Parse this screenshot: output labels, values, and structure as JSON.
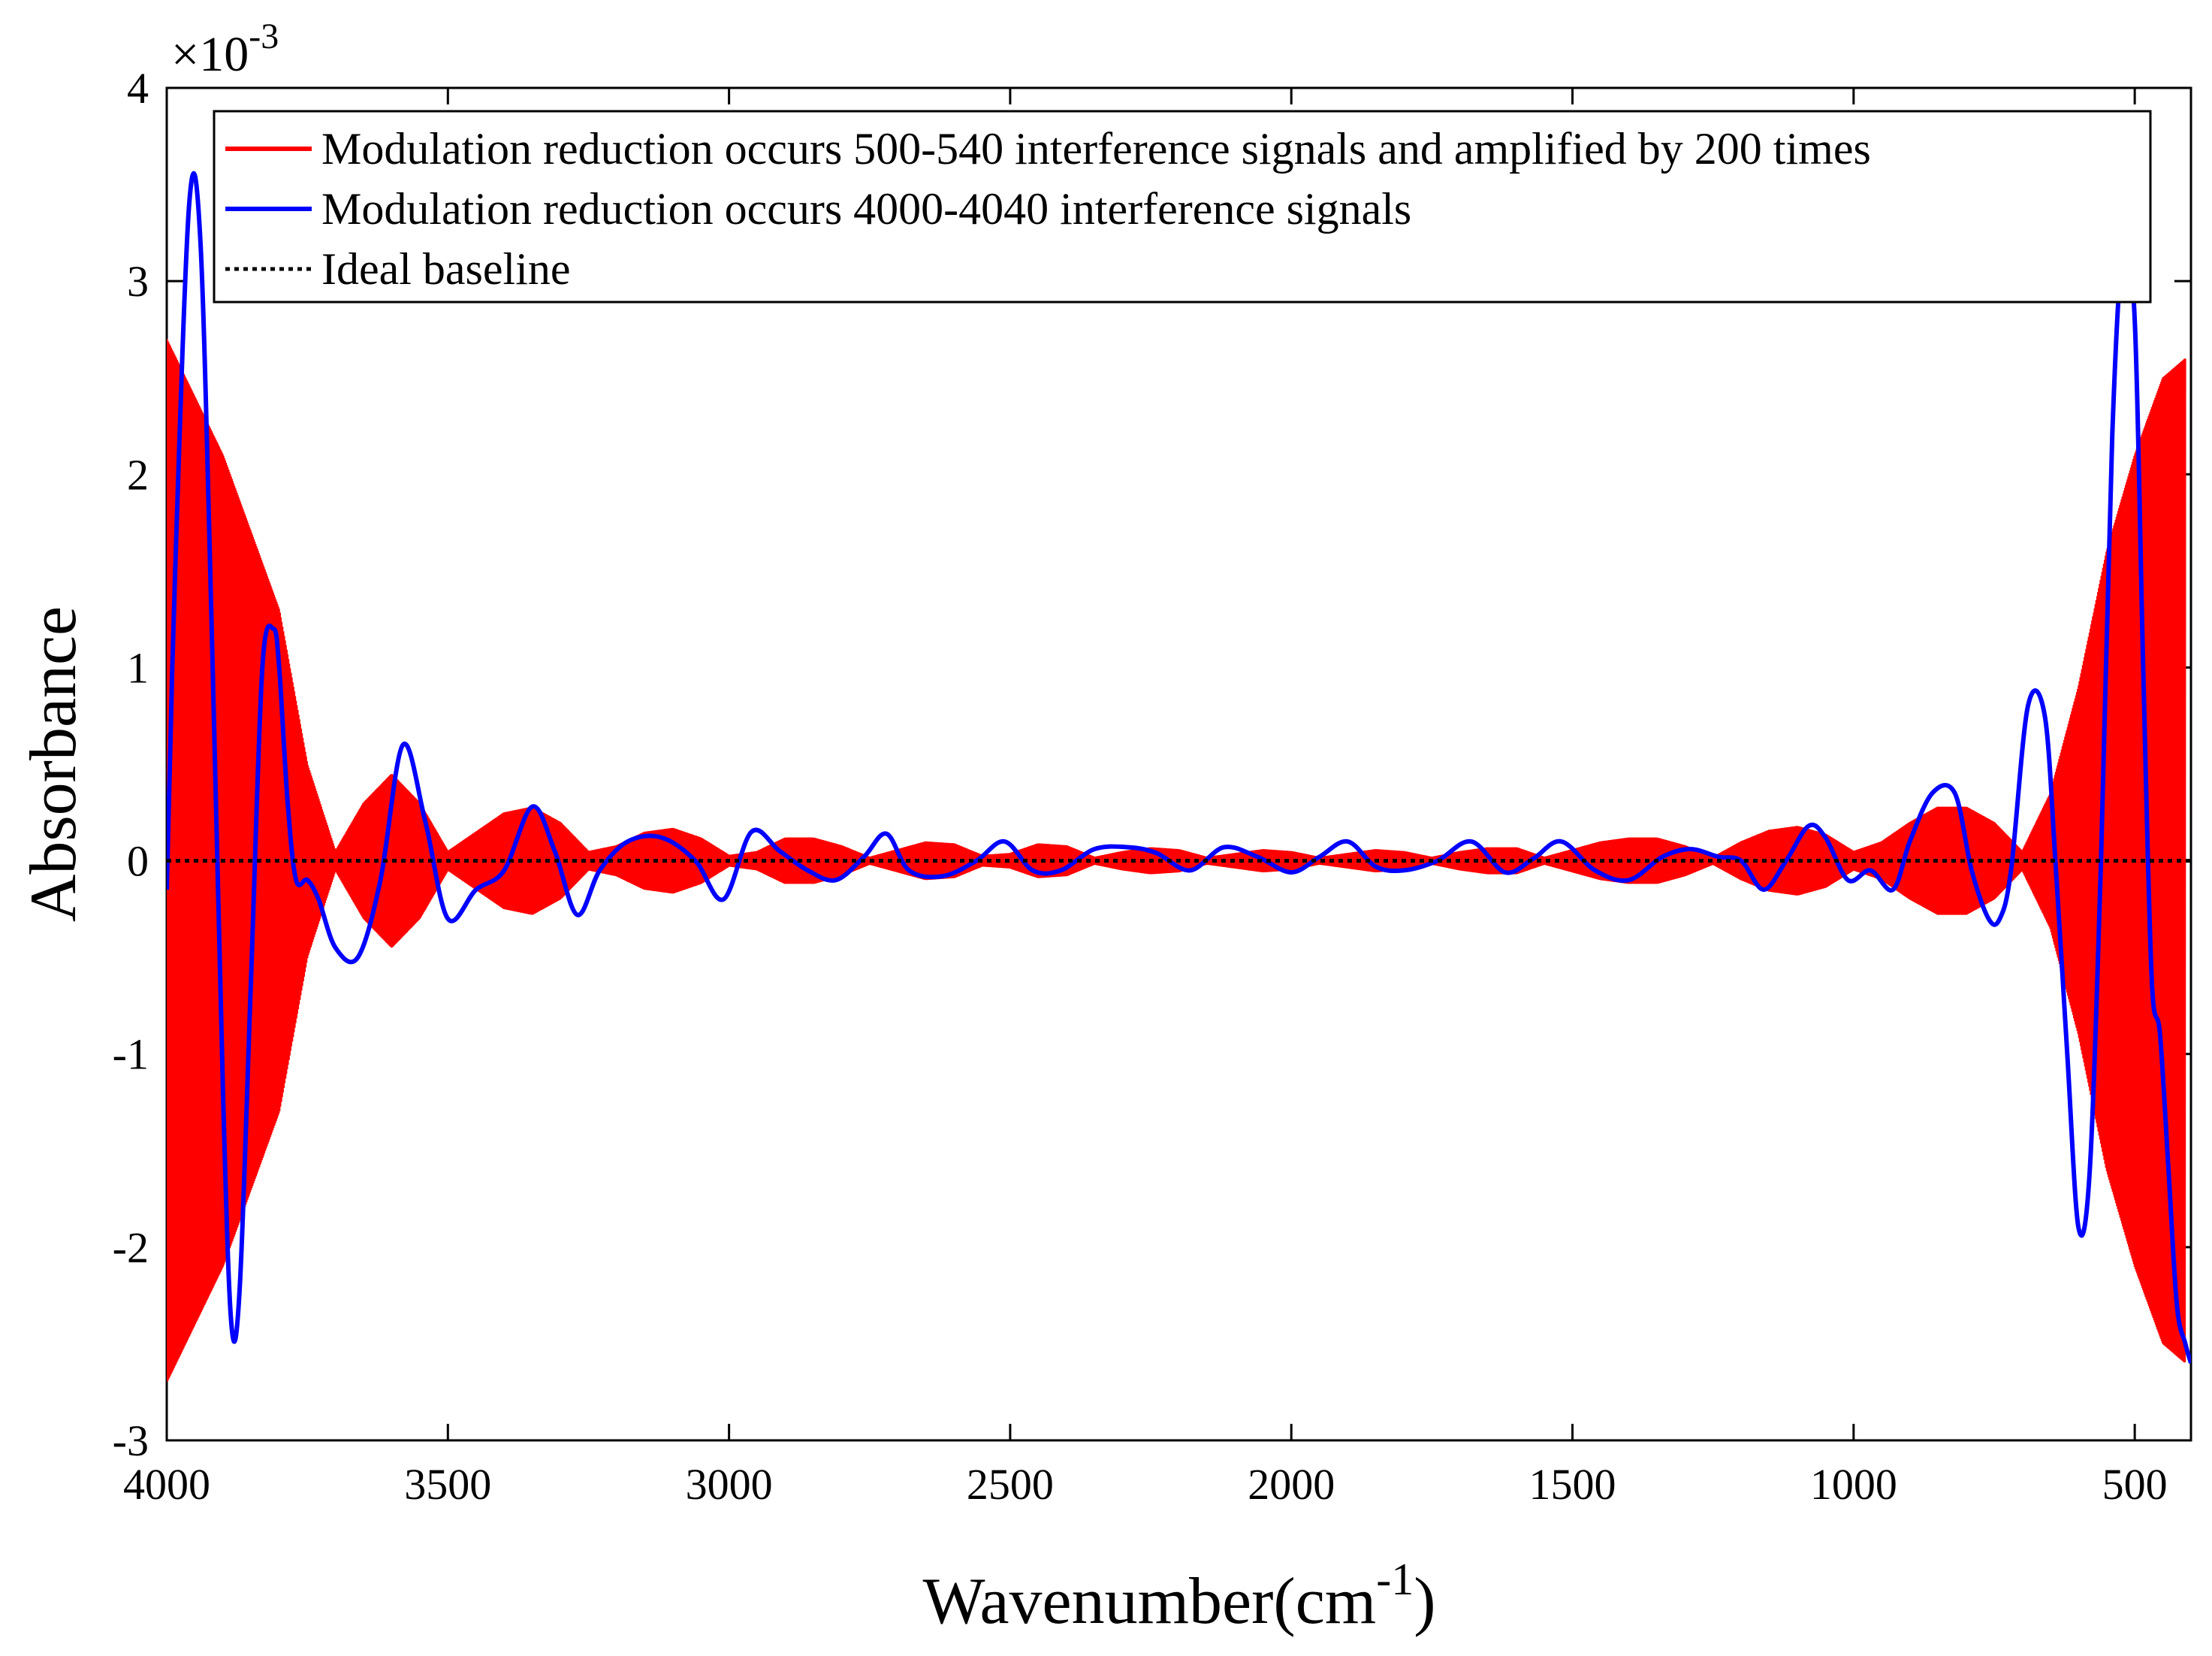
{
  "chart_data": {
    "type": "line",
    "xlabel": "Wavenumber(cm",
    "xlabel_unit_exp": "-1",
    "xlabel_close": ")",
    "ylabel": "Absorbance",
    "y_multiplier": "×10",
    "y_multiplier_exp": "-3",
    "xlim": [
      4000,
      400
    ],
    "ylim": [
      -3,
      4
    ],
    "x_reversed": true,
    "x_ticks": [
      4000,
      3500,
      3000,
      2500,
      2000,
      1500,
      1000,
      500
    ],
    "x_tick_labels": [
      "4000",
      "3500",
      "3000",
      "2500",
      "2000",
      "1500",
      "1000",
      "500"
    ],
    "y_ticks": [
      -3,
      -2,
      -1,
      0,
      1,
      2,
      3,
      4
    ],
    "y_tick_labels": [
      "-3",
      "-2",
      "-1",
      "0",
      "1",
      "2",
      "3",
      "4"
    ],
    "grid": false,
    "legend_position": "top",
    "series": [
      {
        "name": "Modulation reduction occurs 500-540 interference signals and amplified by 200 times",
        "color": "#ff0000",
        "style": "solid",
        "kind": "dense-oscillation-envelope",
        "envelope": {
          "wavenumber": [
            4000,
            3900,
            3800,
            3750,
            3700,
            3650,
            3600,
            3550,
            3500,
            3450,
            3400,
            3350,
            3300,
            3250,
            3200,
            3150,
            3100,
            3050,
            3000,
            2950,
            2900,
            2850,
            2800,
            2750,
            2700,
            2650,
            2600,
            2550,
            2500,
            2450,
            2400,
            2350,
            2300,
            2250,
            2200,
            2150,
            2100,
            2050,
            2000,
            1950,
            1900,
            1850,
            1800,
            1750,
            1700,
            1650,
            1600,
            1550,
            1500,
            1450,
            1400,
            1350,
            1300,
            1250,
            1200,
            1150,
            1100,
            1050,
            1000,
            950,
            900,
            850,
            800,
            750,
            700,
            650,
            600,
            550,
            500,
            450,
            410
          ],
          "amplitude": [
            2.7,
            2.1,
            1.3,
            0.5,
            0.05,
            0.3,
            0.45,
            0.3,
            0.05,
            0.15,
            0.25,
            0.28,
            0.2,
            0.05,
            0.08,
            0.15,
            0.17,
            0.12,
            0.03,
            0.05,
            0.12,
            0.12,
            0.08,
            0.02,
            0.06,
            0.1,
            0.09,
            0.03,
            0.04,
            0.09,
            0.08,
            0.02,
            0.05,
            0.07,
            0.06,
            0.02,
            0.04,
            0.06,
            0.05,
            0.02,
            0.04,
            0.06,
            0.05,
            0.02,
            0.05,
            0.07,
            0.07,
            0.02,
            0.06,
            0.1,
            0.12,
            0.12,
            0.08,
            0.02,
            0.1,
            0.16,
            0.18,
            0.14,
            0.05,
            0.1,
            0.2,
            0.28,
            0.28,
            0.2,
            0.05,
            0.35,
            0.9,
            1.6,
            2.1,
            2.5,
            2.6
          ]
        }
      },
      {
        "name": "Modulation reduction occurs 4000-4040 interference signals",
        "color": "#0000ff",
        "style": "solid",
        "x": [
          4000,
          3985,
          3960,
          3940,
          3920,
          3900,
          3885,
          3870,
          3850,
          3830,
          3810,
          3800,
          3785,
          3770,
          3750,
          3730,
          3700,
          3660,
          3620,
          3580,
          3540,
          3500,
          3450,
          3400,
          3350,
          3310,
          3270,
          3230,
          3180,
          3120,
          3060,
          3010,
          2960,
          2910,
          2860,
          2810,
          2760,
          2720,
          2680,
          2620,
          2560,
          2510,
          2460,
          2410,
          2350,
          2290,
          2240,
          2180,
          2120,
          2060,
          2000,
          1950,
          1900,
          1850,
          1800,
          1740,
          1680,
          1620,
          1570,
          1520,
          1460,
          1400,
          1340,
          1290,
          1240,
          1200,
          1160,
          1120,
          1080,
          1050,
          1010,
          970,
          930,
          900,
          860,
          820,
          790,
          760,
          740,
          720,
          690,
          660,
          640,
          620,
          600,
          580,
          560,
          540,
          520,
          500,
          485,
          470,
          455,
          440,
          425,
          410,
          400
        ],
        "y": [
          -0.15,
          1.5,
          3.4,
          3.2,
          1.2,
          -1.2,
          -2.4,
          -2.2,
          -0.6,
          1.0,
          1.2,
          1.0,
          0.3,
          -0.1,
          -0.1,
          -0.2,
          -0.45,
          -0.5,
          -0.1,
          0.6,
          0.2,
          -0.3,
          -0.15,
          -0.05,
          0.28,
          0.05,
          -0.28,
          -0.05,
          0.1,
          0.12,
          0.0,
          -0.2,
          0.15,
          0.05,
          -0.05,
          -0.1,
          0.02,
          0.14,
          -0.05,
          -0.08,
          0.0,
          0.1,
          -0.05,
          -0.05,
          0.06,
          0.07,
          0.04,
          -0.05,
          0.07,
          0.02,
          -0.06,
          0.02,
          0.1,
          -0.03,
          -0.05,
          0.0,
          0.1,
          -0.06,
          0.01,
          0.1,
          -0.05,
          -0.1,
          0.02,
          0.06,
          0.02,
          0.0,
          -0.15,
          0.0,
          0.18,
          0.12,
          -0.1,
          -0.05,
          -0.15,
          0.1,
          0.35,
          0.35,
          -0.05,
          -0.3,
          -0.3,
          -0.05,
          0.8,
          0.75,
          -0.05,
          -1.0,
          -1.9,
          -1.6,
          0.0,
          2.2,
          3.2,
          2.8,
          1.0,
          -0.6,
          -0.9,
          -1.6,
          -2.3,
          -2.5,
          -2.6
        ]
      },
      {
        "name": "Ideal baseline",
        "color": "#000000",
        "style": "dotted",
        "x": [
          4000,
          400
        ],
        "y": [
          0,
          0
        ]
      }
    ]
  }
}
